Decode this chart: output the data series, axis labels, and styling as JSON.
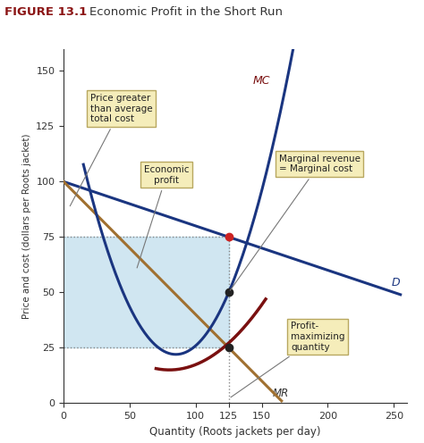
{
  "title_figure": "FIGURE 13.1",
  "title_main": "Economic Profit in the Short Run",
  "xlabel": "Quantity (Roots jackets per day)",
  "ylabel": "Price and cost (dollars per Roots jacket)",
  "xlim": [
    0,
    260
  ],
  "ylim": [
    0,
    160
  ],
  "xticks": [
    0,
    50,
    100,
    125,
    150,
    200,
    250
  ],
  "yticks": [
    0,
    25,
    50,
    75,
    100,
    125,
    150
  ],
  "profit_shade_color": "#b8d9ea",
  "profit_shade_alpha": 0.65,
  "mc_color": "#7a1010",
  "atc_color": "#1a3580",
  "d_color": "#1a3580",
  "mr_color": "#a07030",
  "dot_color_red": "#cc2222",
  "dot_color_black": "#222222",
  "annotation_box_facecolor": "#f5edba",
  "annotation_box_edgecolor": "#b8a860",
  "dashed_line_color": "#888888",
  "red_tick_color": "#cc2222",
  "spine_color": "#333333",
  "title_figure_color": "#8b1515",
  "title_main_color": "#333333"
}
